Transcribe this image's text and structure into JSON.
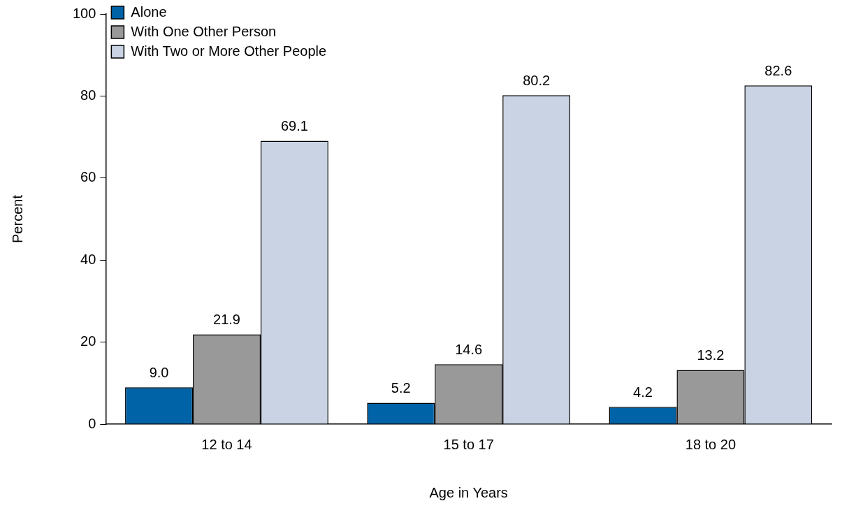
{
  "chart_data": {
    "type": "bar",
    "xlabel": "Age in Years",
    "ylabel": "Percent",
    "categories": [
      "12 to 14",
      "15 to 17",
      "18 to 20"
    ],
    "series": [
      {
        "name": "Alone",
        "color": "#0063a8",
        "values": [
          9.0,
          5.2,
          4.2
        ],
        "value_labels": [
          "9.0",
          "5.2",
          "4.2"
        ]
      },
      {
        "name": "With One Other Person",
        "color": "#999999",
        "values": [
          21.9,
          14.6,
          13.2
        ],
        "value_labels": [
          "21.9",
          "14.6",
          "13.2"
        ]
      },
      {
        "name": "With Two or More Other People",
        "color": "#c9d3e3",
        "values": [
          69.1,
          80.2,
          82.6
        ],
        "value_labels": [
          "69.1",
          "80.2",
          "82.6"
        ]
      }
    ],
    "ylim": [
      0,
      100
    ],
    "yticks": [
      0,
      20,
      40,
      60,
      80,
      100
    ],
    "grid": false,
    "legend": "top left"
  }
}
